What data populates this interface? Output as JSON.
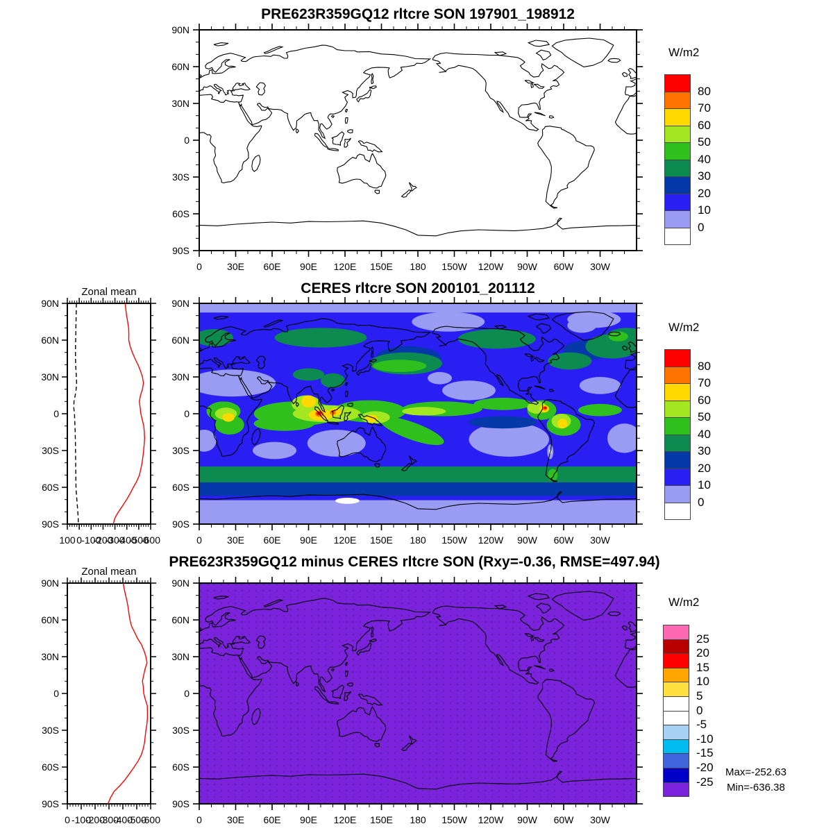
{
  "axes": {
    "lon_labels": [
      "0",
      "30E",
      "60E",
      "90E",
      "120E",
      "150E",
      "180",
      "150W",
      "120W",
      "90W",
      "60W",
      "30W"
    ],
    "lat_labels": [
      "90N",
      "60N",
      "30N",
      "0",
      "30S",
      "60S",
      "90S"
    ]
  },
  "chart_data": [
    {
      "id": "model_map",
      "type": "contour-map",
      "title": "PRE623R359GQ12 rltcre SON 197901_198912",
      "units": "W/m2",
      "field": "blank-all-below-zero",
      "colorbar": {
        "labels": [
          "80",
          "70",
          "60",
          "50",
          "40",
          "30",
          "20",
          "10",
          "0"
        ],
        "colors": [
          "#ff0000",
          "#ff7300",
          "#ffd900",
          "#a3e622",
          "#2fc01e",
          "#0d8a4f",
          "#0538a8",
          "#2a1ff2",
          "#999cf2",
          "#ffffff"
        ]
      }
    },
    {
      "id": "ceres_map",
      "type": "contour-map",
      "title": "CERES rltcre SON 200101_201112",
      "units": "W/m2",
      "field": "filled-contours",
      "colorbar": {
        "labels": [
          "80",
          "70",
          "60",
          "50",
          "40",
          "30",
          "20",
          "10",
          "0"
        ],
        "colors": [
          "#ff0000",
          "#ff7300",
          "#ffd900",
          "#a3e622",
          "#2fc01e",
          "#0d8a4f",
          "#0538a8",
          "#2a1ff2",
          "#999cf2",
          "#ffffff"
        ]
      }
    },
    {
      "id": "diff_map",
      "type": "contour-map",
      "title": "PRE623R359GQ12 minus CERES rltcre SON (Rxy=-0.36, RMSE=497.94)",
      "units": "W/m2",
      "field": "uniform-below-minus-25-stippled",
      "stats": {
        "max_label": "Max=-252.63",
        "min_label": "Min=-636.38"
      },
      "colorbar": {
        "labels": [
          "25",
          "20",
          "15",
          "10",
          "5",
          "0",
          "-5",
          "-10",
          "-15",
          "-20",
          "-25"
        ],
        "colors": [
          "#ff69b4",
          "#b80000",
          "#ff0000",
          "#ffa600",
          "#ffdf3f",
          "#ffffff",
          "#ffffff",
          "#a6d1f5",
          "#00bcf0",
          "#3f64db",
          "#0000c8",
          "#7b22dc"
        ]
      }
    },
    {
      "id": "zonal_mid",
      "type": "line",
      "title": "Zonal mean",
      "xlim": [
        100,
        -600
      ],
      "xtick_labels": [
        "100",
        "0",
        "-100",
        "-200",
        "-300",
        "-400",
        "-500",
        "-600"
      ],
      "xticks": [
        100,
        0,
        -100,
        -200,
        -300,
        -400,
        -500,
        -600
      ],
      "xminor_step": 20,
      "lat_start": 90,
      "lat_step": -5,
      "series": [
        {
          "name": "CERES",
          "style": "dashed-black",
          "values": [
            24,
            25,
            26,
            27,
            28,
            29,
            30,
            31,
            32,
            31,
            30,
            27,
            24,
            22,
            26,
            34,
            44,
            46,
            40,
            38,
            36,
            34,
            33,
            32,
            31,
            30.5,
            30,
            29.5,
            29,
            28,
            27,
            24,
            20,
            16,
            12,
            9,
            7
          ]
        },
        {
          "name": "PRE623R359GQ12",
          "style": "solid-red",
          "values": [
            -386,
            -391,
            -398,
            -407,
            -415,
            -417,
            -416,
            -428,
            -446,
            -468,
            -493,
            -514,
            -531,
            -540,
            -531,
            -515,
            -505,
            -512,
            -518,
            -530,
            -542,
            -547,
            -549,
            -546,
            -541,
            -535,
            -528,
            -518,
            -506,
            -484,
            -455,
            -428,
            -398,
            -365,
            -330,
            -300,
            -286
          ]
        }
      ]
    },
    {
      "id": "zonal_bot",
      "type": "line",
      "title": "Zonal mean",
      "xlim": [
        0,
        -600
      ],
      "xtick_labels": [
        "0",
        "-100",
        "-200",
        "-300",
        "-400",
        "-500",
        "-600"
      ],
      "xticks": [
        0,
        -100,
        -200,
        -300,
        -400,
        -500,
        -600
      ],
      "xminor_step": 20,
      "lat_start": 90,
      "lat_step": -5,
      "series": [
        {
          "name": "PRE623R359GQ12 minus CERES",
          "style": "solid-red",
          "values": [
            -402,
            -410,
            -420,
            -430,
            -438,
            -444,
            -451,
            -462,
            -484,
            -505,
            -533,
            -552,
            -566,
            -574,
            -560,
            -550,
            -541,
            -548,
            -550,
            -562,
            -576,
            -577,
            -577,
            -573,
            -566,
            -561,
            -556,
            -547,
            -533,
            -510,
            -481,
            -450,
            -418,
            -380,
            -336,
            -311,
            -292
          ]
        }
      ]
    }
  ]
}
